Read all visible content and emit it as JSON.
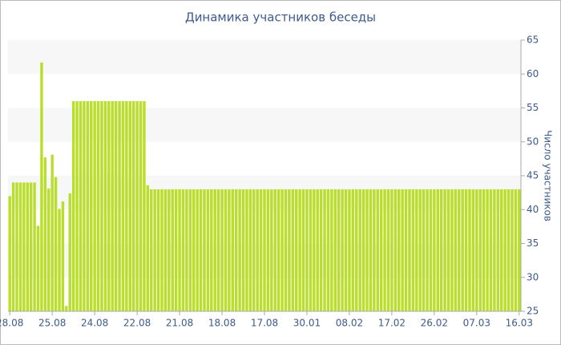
{
  "chart_data": {
    "type": "bar",
    "title": "Динамика участников беседы",
    "y_label": "Число участников",
    "categories": [
      "28.08",
      null,
      null,
      null,
      null,
      null,
      null,
      null,
      null,
      null,
      null,
      null,
      "25.08",
      null,
      null,
      null,
      null,
      null,
      null,
      null,
      null,
      null,
      null,
      null,
      "24.08",
      null,
      null,
      null,
      null,
      null,
      null,
      null,
      null,
      null,
      null,
      null,
      "22.08",
      null,
      null,
      null,
      null,
      null,
      null,
      null,
      null,
      null,
      null,
      null,
      "21.08",
      null,
      null,
      null,
      null,
      null,
      null,
      null,
      null,
      null,
      null,
      null,
      "18.08",
      null,
      null,
      null,
      null,
      null,
      null,
      null,
      null,
      null,
      null,
      null,
      "17.08",
      null,
      null,
      null,
      null,
      null,
      null,
      null,
      null,
      null,
      null,
      null,
      "30.01",
      null,
      null,
      null,
      null,
      null,
      null,
      null,
      null,
      null,
      null,
      null,
      "08.02",
      null,
      null,
      null,
      null,
      null,
      null,
      null,
      null,
      null,
      null,
      null,
      "17.02",
      null,
      null,
      null,
      null,
      null,
      null,
      null,
      null,
      null,
      null,
      null,
      "26.02",
      null,
      null,
      null,
      null,
      null,
      null,
      null,
      null,
      null,
      null,
      null,
      "07.03",
      null,
      null,
      null,
      null,
      null,
      null,
      null,
      null,
      null,
      null,
      null,
      "16.03"
    ],
    "values": [
      42,
      44,
      44,
      44,
      44,
      44,
      44,
      44,
      37.6,
      61.7,
      47.7,
      43.1,
      48.1,
      44.8,
      40.1,
      41.2,
      25.8,
      42.4,
      56,
      56,
      56,
      56,
      56,
      56,
      56,
      56,
      56,
      56,
      56,
      56,
      56,
      56,
      56,
      56,
      56,
      56,
      56,
      56,
      56,
      43.6,
      43,
      43,
      43,
      43,
      43,
      43,
      43,
      43,
      43,
      43,
      43,
      43,
      43,
      43,
      43,
      43,
      43,
      43,
      43,
      43,
      43,
      43,
      43,
      43,
      43,
      43,
      43,
      43,
      43,
      43,
      43,
      43,
      43,
      43,
      43,
      43,
      43,
      43,
      43,
      43,
      43,
      43,
      43,
      43,
      43,
      43,
      43,
      43,
      43,
      43,
      43,
      43,
      43,
      43,
      43,
      43,
      43,
      43,
      43,
      43,
      43,
      43,
      43,
      43,
      43,
      43,
      43,
      43,
      43,
      43,
      43,
      43,
      43,
      43,
      43,
      43,
      43,
      43,
      43,
      43,
      43,
      43,
      43,
      43,
      43,
      43,
      43,
      43,
      43,
      43,
      43,
      43,
      43,
      43,
      43,
      43,
      43,
      43,
      43,
      43,
      43,
      43,
      43,
      43,
      43
    ],
    "color": "#bade2c",
    "ylim": [
      25,
      65
    ],
    "yticks": [
      25,
      30,
      35,
      40,
      45,
      50,
      55,
      60,
      65
    ],
    "grid": "bands",
    "y_axis_side": "right"
  }
}
